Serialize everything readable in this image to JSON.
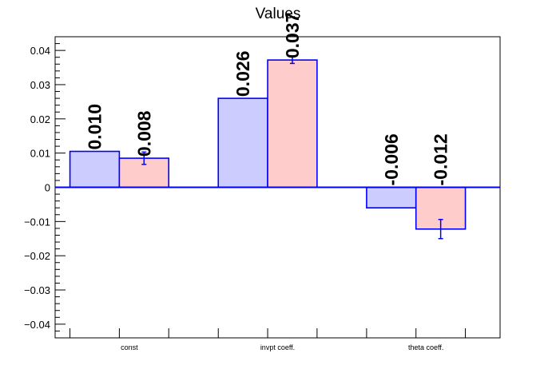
{
  "chart_data": {
    "type": "bar",
    "title": "Values",
    "xlabel": "",
    "ylabel": "",
    "categories": [
      "const",
      "invpt coeff.",
      "theta coeff."
    ],
    "ylim": [
      -0.044,
      0.044
    ],
    "yticks": [
      -0.04,
      -0.03,
      -0.02,
      -0.01,
      0,
      0.01,
      0.02,
      0.03,
      0.04
    ],
    "ytick_labels": [
      "−0.04",
      "−0.03",
      "−0.02",
      "−0.01",
      "0",
      "0.01",
      "0.02",
      "0.03",
      "0.04"
    ],
    "grid": false,
    "series": [
      {
        "color": "#ccccff",
        "edge_color": "#0000ff",
        "values": [
          0.0105,
          0.026,
          -0.006
        ],
        "errors": [
          0,
          0,
          0
        ],
        "labels": [
          "0.010",
          "0.026",
          "-0.006"
        ]
      },
      {
        "color": "#ffcccc",
        "edge_color": "#0000ff",
        "values": [
          0.0085,
          0.0372,
          -0.0122
        ],
        "errors": [
          0.0018,
          0.001,
          0.0028
        ],
        "labels": [
          "0.008",
          "0.037",
          "-0.012"
        ]
      }
    ]
  }
}
